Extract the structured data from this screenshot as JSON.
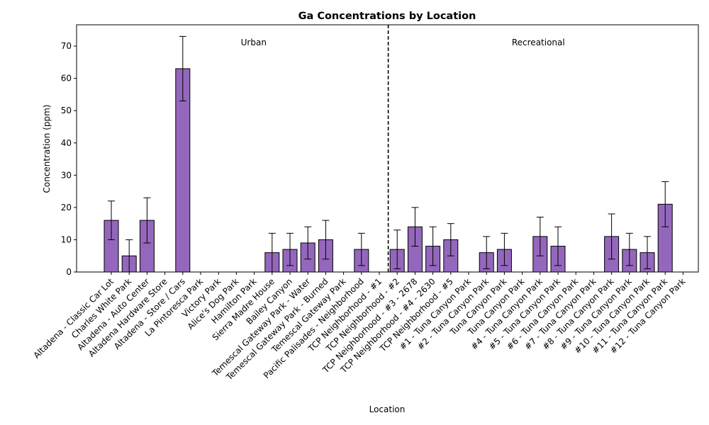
{
  "chart_data": {
    "type": "bar",
    "title": "Ga Concentrations by Location",
    "xlabel": "Location",
    "ylabel": "Concentration (ppm)",
    "ylim": [
      0,
      76.6
    ],
    "yticks": [
      0,
      10,
      20,
      30,
      40,
      50,
      60,
      70
    ],
    "grid": false,
    "bar_color": "#9467bd",
    "edge_color": "#000000",
    "categories": [
      "Altadena - Classic Car Lot",
      "Charles White Park",
      "Altadena - Auto Center",
      "Altadena Hardware Store",
      "Altadena - Store / Cars",
      "La Pintoresca Park",
      "Victory Park",
      "Alice's Dog Park",
      "Hamilton Park",
      "Sierra Madre House",
      "Bailey Canyon",
      "Temescal Gateway Park - Water",
      "Temescal Gateway Park - Burned",
      "Temescal Gateway Park",
      "Pacific Palisades - Neighborhood",
      "TCP Neighborhood - #1",
      "TCP Neighborhood - #2",
      "TCP Neighborhood - #3 - 2678",
      "TCP Neighborhood - #4 - 2630",
      "TCP Neighborhood - #5",
      "#1 - Tuna Canyon Park",
      "#2 - Tuna Canyon Park",
      "Tuna Canyon Park",
      "Tuna Canyon Park",
      "#4 - Tuna Canyon Park",
      "#5 - Tuna Canyon Park",
      "#6 - Tuna Canyon Park",
      "#7 - Tuna Canyon Park",
      "#8 - Tuna Canyon Park",
      "#9 - Tuna Canyon Park",
      "#10 - Tuna Canyon Park",
      "#11 - Tuna Canyon Park",
      "#12 - Tuna Canyon Park"
    ],
    "values": [
      16,
      5,
      16,
      null,
      63,
      null,
      null,
      null,
      null,
      6,
      7,
      9,
      10,
      null,
      7,
      null,
      7,
      14,
      8,
      10,
      null,
      6,
      7,
      null,
      11,
      8,
      null,
      null,
      11,
      7,
      6,
      21,
      null
    ],
    "errors": [
      6,
      5,
      7,
      null,
      10,
      null,
      null,
      null,
      null,
      6,
      5,
      5,
      6,
      null,
      5,
      null,
      6,
      6,
      6,
      5,
      null,
      5,
      5,
      null,
      6,
      6,
      null,
      null,
      7,
      5,
      5,
      7,
      null
    ],
    "divider_after_index": 15,
    "annotations": [
      {
        "text": "Urban",
        "region": "left"
      },
      {
        "text": "Recreational",
        "region": "right"
      }
    ]
  }
}
